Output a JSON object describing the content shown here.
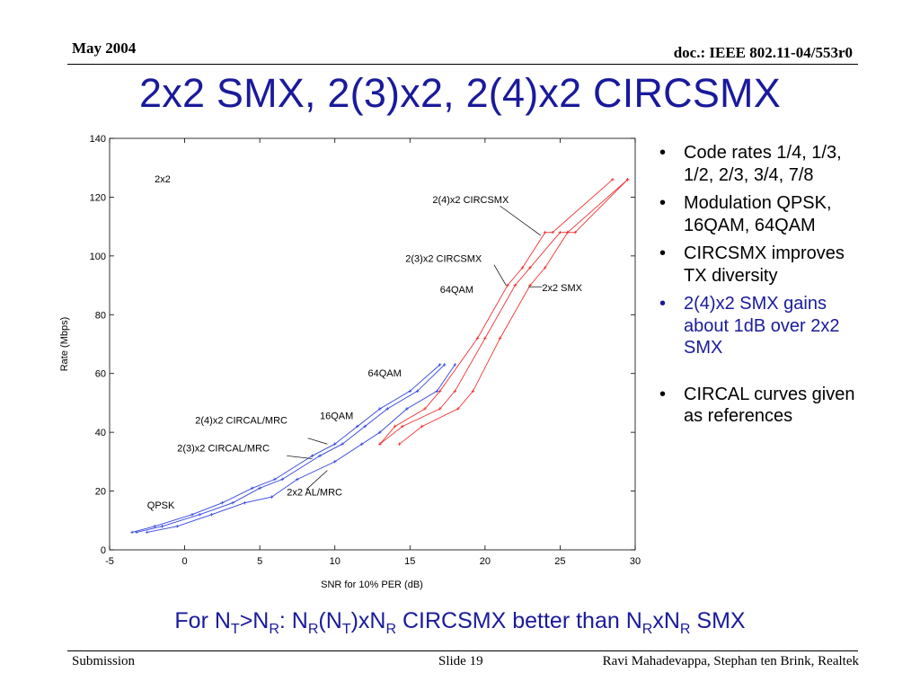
{
  "header": {
    "date": "May 2004",
    "doc": "doc.: IEEE 802.11-04/553r0"
  },
  "title": "2x2 SMX, 2(3)x2, 2(4)x2 CIRCSMX",
  "bullets": [
    "Code rates 1/4, 1/3, 1/2, 2/3, 3/4, 7/8",
    "Modulation QPSK, 16QAM, 64QAM",
    "CIRCSMX improves TX diversity",
    "2(4)x2 SMX gains about 1dB over 2x2 SMX",
    "CIRCAL curves given as references"
  ],
  "bullet_symbol": "•",
  "bottom_note": {
    "p1": "For N",
    "s1": "T",
    "p2": ">N",
    "s2": "R",
    "p3": ": N",
    "s3": "R",
    "p4": "(N",
    "s4": "T",
    "p5": ")xN",
    "s5": "R",
    "p6": " CIRCSMX better than N",
    "s6": "R",
    "p7": "xN",
    "s7": "R",
    "p8": " SMX"
  },
  "footer": {
    "left": "Submission",
    "center": "Slide 19",
    "right": "Ravi Mahadevappa, Stephan ten Brink, Realtek"
  },
  "colors": {
    "title": "#1a1a9c",
    "red_series": "#ee3333",
    "blue_series": "#3344dd"
  },
  "chart_data": {
    "type": "line",
    "xlabel": "SNR for 10% PER (dB)",
    "ylabel": "Rate (Mbps)",
    "xlim": [
      -5,
      30
    ],
    "ylim": [
      0,
      140
    ],
    "xticks": [
      -5,
      0,
      5,
      10,
      15,
      20,
      25,
      30
    ],
    "yticks": [
      0,
      20,
      40,
      60,
      80,
      100,
      120,
      140
    ],
    "grid": false,
    "series": [
      {
        "color": "red",
        "x": [
          13.0,
          14.0,
          16.0,
          17.0,
          19.5,
          21.5,
          22.5,
          24.0,
          24.5,
          28.5
        ],
        "y": [
          36,
          42,
          48,
          54,
          72,
          90,
          96,
          108,
          108,
          126
        ]
      },
      {
        "color": "red",
        "x": [
          13.0,
          14.5,
          17.0,
          18.0,
          20.0,
          22.0,
          23.0,
          25.0,
          25.5,
          29.5
        ],
        "y": [
          36,
          42,
          48,
          54,
          72,
          90,
          96,
          108,
          108,
          126
        ]
      },
      {
        "color": "red",
        "x": [
          14.3,
          15.8,
          18.2,
          19.2,
          21.0,
          23.0,
          24.0,
          25.5,
          26.0,
          29.5
        ],
        "y": [
          36,
          42,
          48,
          54,
          72,
          90,
          96,
          108,
          108,
          126
        ]
      },
      {
        "color": "blue",
        "x": [
          -3.5,
          -2.0,
          0.5,
          2.5,
          4.5,
          6.0,
          8.5,
          10.0,
          11.5,
          13.0,
          15.0,
          17.0
        ],
        "y": [
          6,
          8,
          12,
          16,
          21,
          24,
          32,
          36,
          42,
          48,
          54,
          63
        ]
      },
      {
        "color": "blue",
        "x": [
          -3.2,
          -1.5,
          1.0,
          3.2,
          5.0,
          6.5,
          9.0,
          10.5,
          12.0,
          13.5,
          15.5,
          17.3
        ],
        "y": [
          6,
          8,
          12,
          16,
          21,
          24,
          32,
          36,
          42,
          48,
          54,
          63
        ]
      },
      {
        "color": "blue",
        "x": [
          -2.5,
          -0.5,
          1.8,
          4.0,
          5.8,
          7.5,
          10.0,
          11.8,
          13.0,
          14.8,
          16.8,
          18.0
        ],
        "y": [
          6,
          8,
          12,
          16,
          18,
          24,
          30,
          36,
          40,
          48,
          54,
          63
        ]
      }
    ],
    "annotations": [
      {
        "text": "2x2",
        "x": -2.0,
        "y": 125
      },
      {
        "text": "2(4)x2 CIRCSMX",
        "x": 16.5,
        "y": 118
      },
      {
        "text": "2(3)x2 CIRCSMX",
        "x": 14.7,
        "y": 98
      },
      {
        "text": "64QAM",
        "x": 17.0,
        "y": 87.5
      },
      {
        "text": "2x2 SMX",
        "x": 23.8,
        "y": 88
      },
      {
        "text": "64QAM",
        "x": 12.2,
        "y": 59
      },
      {
        "text": "16QAM",
        "x": 9.0,
        "y": 44.5
      },
      {
        "text": "2(4)x2 CIRCAL/MRC",
        "x": 0.7,
        "y": 43
      },
      {
        "text": "2(3)x2 CIRCAL/MRC",
        "x": -0.5,
        "y": 33.5
      },
      {
        "text": "2x2 AL/MRC",
        "x": 6.8,
        "y": 18.5
      },
      {
        "text": "QPSK",
        "x": -2.5,
        "y": 14
      }
    ],
    "annotation_leaders": [
      {
        "from": [
          21.0,
          117
        ],
        "to": [
          23.7,
          107
        ]
      },
      {
        "from": [
          20.6,
          97
        ],
        "to": [
          21.4,
          90
        ]
      },
      {
        "from": [
          23.8,
          89.5
        ],
        "to": [
          22.9,
          89.5
        ]
      },
      {
        "from": [
          8.2,
          38
        ],
        "to": [
          9.5,
          36
        ]
      },
      {
        "from": [
          6.8,
          32
        ],
        "to": [
          8.5,
          31
        ]
      },
      {
        "from": [
          8.1,
          20.5
        ],
        "to": [
          9.5,
          27
        ]
      }
    ]
  }
}
